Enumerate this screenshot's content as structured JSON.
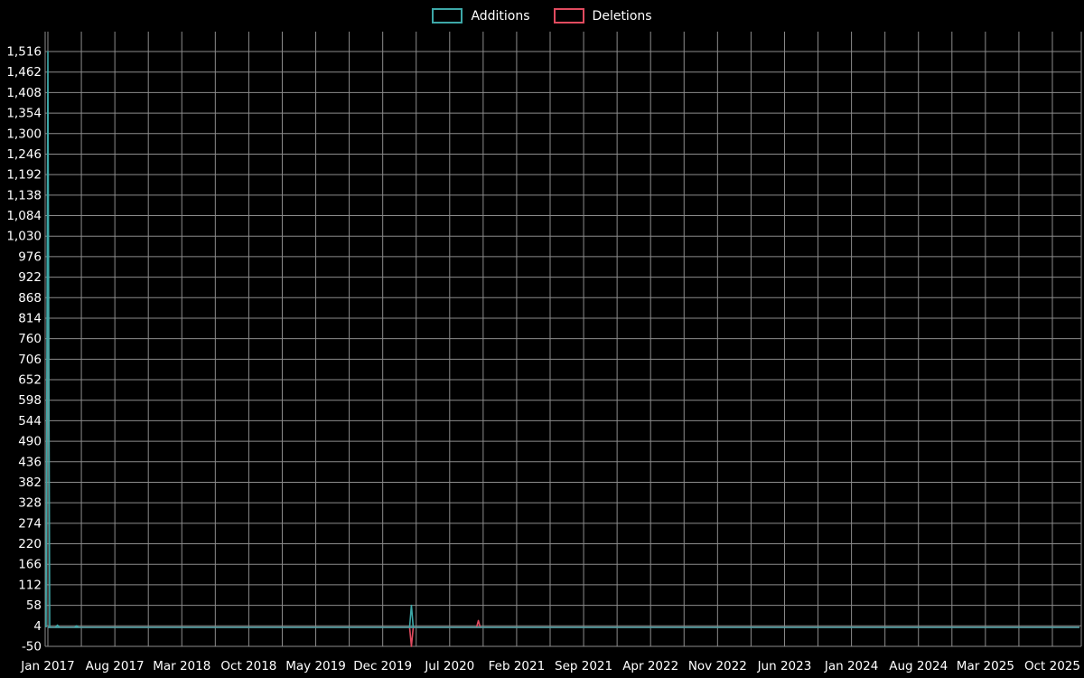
{
  "chart_data": {
    "type": "line",
    "title": "",
    "legend_position": "top-center",
    "background": "#000000",
    "grid": true,
    "grid_color": "#8c8c8c",
    "text_color": "#ffffff",
    "x_start_month": "2017-01",
    "x_end_month": "2025-10",
    "x_tick_interval_months": 7,
    "x_tick_labels": [
      "Jan 2017",
      "Aug 2017",
      "Mar 2018",
      "Oct 2018",
      "May 2019",
      "Dec 2019",
      "Jul 2020",
      "Feb 2021",
      "Sep 2021",
      "Apr 2022",
      "Nov 2022",
      "Jun 2023",
      "Jan 2024",
      "Aug 2024",
      "Mar 2025",
      "Oct 2025"
    ],
    "y_tick_labels": [
      "-50",
      "4",
      "58",
      "112",
      "166",
      "220",
      "274",
      "328",
      "382",
      "436",
      "490",
      "544",
      "598",
      "652",
      "706",
      "760",
      "814",
      "868",
      "922",
      "976",
      "1,030",
      "1,084",
      "1,138",
      "1,192",
      "1,246",
      "1,300",
      "1,354",
      "1,408",
      "1,462",
      "1,516"
    ],
    "y_tick_step": 54,
    "ylim": [
      -50,
      1516
    ],
    "series": [
      {
        "name": "Additions",
        "color": "#3da8a8",
        "baseline_value": 0,
        "points": [
          {
            "month": "2017-01",
            "value": 1516
          },
          {
            "month": "2017-02",
            "value": 6
          },
          {
            "month": "2017-04",
            "value": 4
          },
          {
            "month": "2020-03",
            "value": 58
          }
        ]
      },
      {
        "name": "Deletions",
        "color": "#e14b5f",
        "baseline_value": 0,
        "points": [
          {
            "month": "2020-03",
            "value": -50
          },
          {
            "month": "2020-10",
            "value": 18
          }
        ]
      }
    ]
  }
}
